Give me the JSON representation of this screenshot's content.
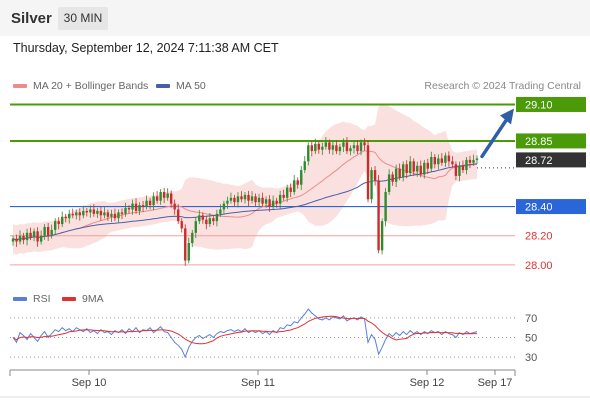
{
  "header": {
    "instrument": "Silver",
    "timeframe": "30 MIN",
    "timestamp": "Thursday, September 12, 2024 7:11:38 AM CET",
    "credit": "Research © 2024 Trading Central"
  },
  "legend": {
    "bollinger": "MA 20 + Bollinger Bands",
    "ma50": "MA 50",
    "rsi": "RSI",
    "rsi_ma": "9MA"
  },
  "colors": {
    "up_level": "#4a9a0a",
    "current": "#333333",
    "pivot": "#2a66d8",
    "down_level": "#e03030",
    "band_fill": "#fbe0e0",
    "ma20": "#f08a8a",
    "ma50": "#4a5ea8",
    "rsi": "#5a7fd8",
    "rsi_ma": "#e03030",
    "arrow": "#2f5fa8",
    "candle_up": "#2e8b2e",
    "candle_down": "#cc2b2b"
  },
  "chart_data": {
    "type": "candlestick",
    "y_range": [
      27.965,
      29.165
    ],
    "levels": [
      {
        "label": "29.10",
        "value": 29.1,
        "kind": "resistance"
      },
      {
        "label": "28.85",
        "value": 28.85,
        "kind": "resistance"
      },
      {
        "label": "28.72",
        "value": 28.72,
        "kind": "current"
      },
      {
        "label": "28.40",
        "value": 28.4,
        "kind": "pivot"
      },
      {
        "label": "28.20",
        "value": 28.2,
        "kind": "support"
      },
      {
        "label": "28.00",
        "value": 28.0,
        "kind": "support"
      }
    ],
    "x_labels": [
      "Sep 10",
      "Sep 11",
      "Sep 12",
      "Sep 17"
    ],
    "close": [
      28.18,
      28.16,
      28.2,
      28.17,
      28.22,
      28.19,
      28.23,
      28.16,
      28.2,
      28.26,
      28.2,
      28.24,
      28.3,
      28.28,
      28.33,
      28.32,
      28.35,
      28.34,
      28.36,
      28.34,
      28.37,
      28.36,
      28.38,
      28.35,
      28.37,
      28.34,
      28.36,
      28.33,
      28.35,
      28.32,
      28.36,
      28.35,
      28.39,
      28.38,
      28.42,
      28.37,
      28.41,
      28.4,
      28.44,
      28.41,
      28.47,
      28.44,
      28.5,
      28.46,
      28.49,
      28.42,
      28.38,
      28.3,
      28.25,
      28.03,
      28.15,
      28.22,
      28.3,
      28.34,
      28.31,
      28.28,
      28.32,
      28.3,
      28.35,
      28.38,
      28.42,
      28.44,
      28.46,
      28.43,
      28.47,
      28.45,
      28.48,
      28.44,
      28.47,
      28.43,
      28.46,
      28.42,
      28.45,
      28.4,
      28.44,
      28.42,
      28.48,
      28.46,
      28.53,
      28.5,
      28.58,
      28.55,
      28.65,
      28.71,
      28.82,
      28.78,
      28.83,
      28.79,
      28.81,
      28.84,
      28.79,
      28.82,
      28.78,
      28.81,
      28.84,
      28.78,
      28.8,
      28.82,
      28.78,
      28.84,
      28.82,
      28.45,
      28.65,
      28.58,
      28.1,
      28.3,
      28.5,
      28.62,
      28.57,
      28.66,
      28.6,
      28.69,
      28.63,
      28.71,
      28.64,
      28.68,
      28.62,
      28.7,
      28.66,
      28.74,
      28.69,
      28.73,
      28.7,
      28.75,
      28.71,
      28.69,
      28.61,
      28.68,
      28.65,
      28.72,
      28.7,
      28.72,
      28.73
    ],
    "rsi": [
      50,
      45,
      55,
      52,
      48,
      54,
      50,
      46,
      52,
      56,
      50,
      54,
      58,
      56,
      60,
      57,
      59,
      56,
      60,
      58,
      56,
      59,
      55,
      57,
      54,
      58,
      55,
      56,
      53,
      57,
      55,
      58,
      54,
      59,
      56,
      60,
      55,
      58,
      57,
      60,
      55,
      58,
      61,
      56,
      55,
      50,
      45,
      42,
      38,
      30,
      40,
      46,
      50,
      52,
      49,
      51,
      53,
      50,
      54,
      56,
      55,
      57,
      58,
      56,
      58,
      56,
      59,
      55,
      57,
      55,
      57,
      54,
      56,
      53,
      57,
      55,
      60,
      59,
      63,
      62,
      66,
      65,
      70,
      74,
      79,
      75,
      72,
      69,
      68,
      70,
      68,
      71,
      70,
      69,
      72,
      67,
      69,
      70,
      68,
      71,
      69,
      45,
      53,
      48,
      33,
      40,
      48,
      54,
      51,
      55,
      52,
      56,
      53,
      57,
      54,
      56,
      53,
      56,
      54,
      57,
      55,
      56,
      53,
      56,
      54,
      53,
      50,
      55,
      53,
      56,
      54,
      55,
      56
    ]
  }
}
